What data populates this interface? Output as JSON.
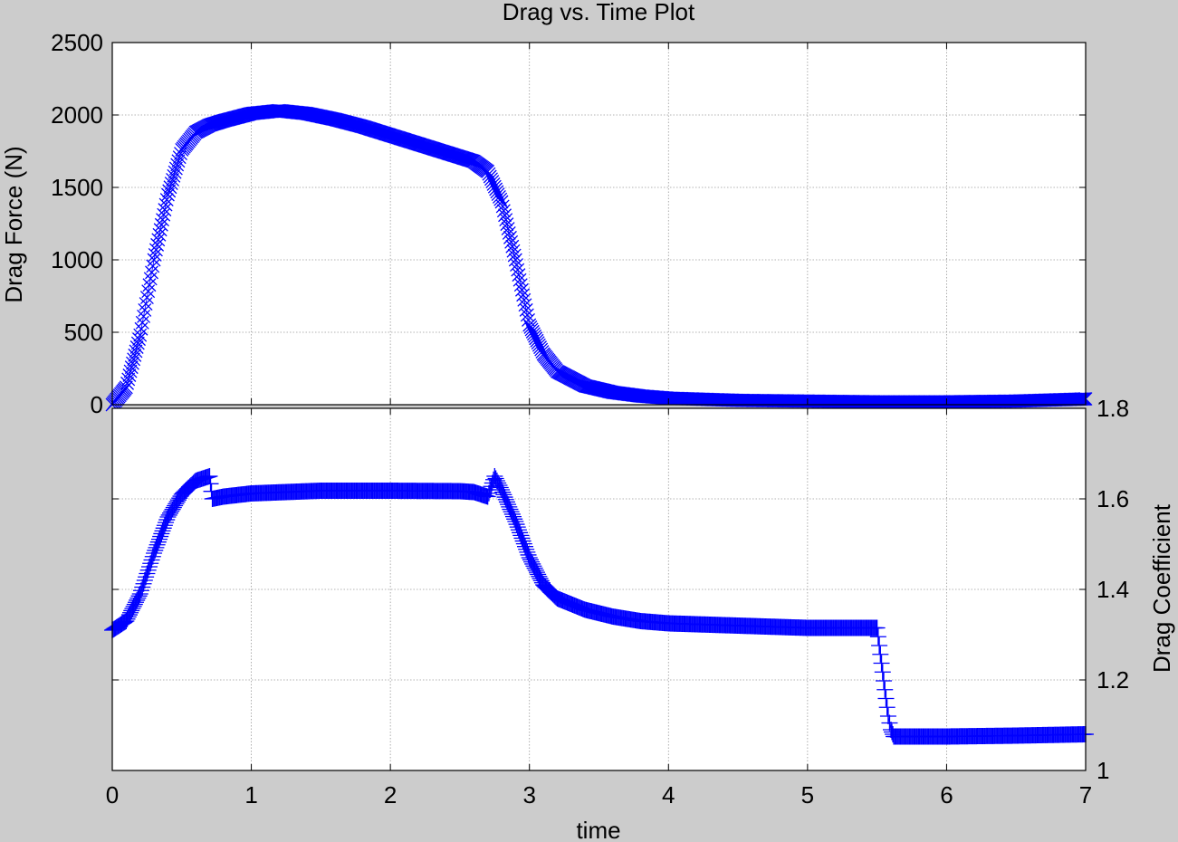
{
  "figure": {
    "background": "#cccccc",
    "plot_background": "#ffffff",
    "series_color": "#0000ff"
  },
  "chart_data": [
    {
      "type": "scatter",
      "title": "Drag vs. Time Plot",
      "xlabel": "time",
      "ylabel": "Drag Force (N)",
      "xlim": [
        0,
        7
      ],
      "ylim": [
        0,
        2500
      ],
      "xticks": [
        "0",
        "1",
        "2",
        "3",
        "4",
        "5",
        "6",
        "7"
      ],
      "yticks": [
        "0",
        "500",
        "1000",
        "1500",
        "2000",
        "2500"
      ],
      "grid": true,
      "marker": "x",
      "series": [
        {
          "x": [
            0,
            0.1,
            0.2,
            0.3,
            0.4,
            0.5,
            0.6,
            0.7,
            0.8,
            1.0,
            1.2,
            1.4,
            1.6,
            1.8,
            2.0,
            2.2,
            2.4,
            2.6,
            2.7,
            2.8,
            2.9,
            3.0,
            3.1,
            3.2,
            3.4,
            3.6,
            3.8,
            4.0,
            4.5,
            5.0,
            5.5,
            6.0,
            6.5,
            7.0
          ],
          "y": [
            0,
            120,
            480,
            1000,
            1450,
            1760,
            1880,
            1930,
            1960,
            2010,
            2030,
            2010,
            1970,
            1920,
            1860,
            1800,
            1740,
            1680,
            1610,
            1400,
            1000,
            550,
            350,
            230,
            130,
            85,
            60,
            45,
            30,
            25,
            20,
            20,
            25,
            40
          ]
        }
      ]
    },
    {
      "type": "scatter",
      "xlabel": "time",
      "ylabel": "Drag Coefficient",
      "xlim": [
        0,
        7
      ],
      "ylim": [
        1,
        1.8
      ],
      "xticks": [
        "0",
        "1",
        "2",
        "3",
        "4",
        "5",
        "6",
        "7"
      ],
      "yticks": [
        "1",
        "1.2",
        "1.4",
        "1.6",
        "1.8"
      ],
      "yaxis_side": "right",
      "grid": true,
      "marker": "+",
      "series": [
        {
          "x": [
            0,
            0.1,
            0.2,
            0.3,
            0.4,
            0.5,
            0.6,
            0.7,
            0.72,
            0.8,
            1.0,
            1.5,
            2.0,
            2.5,
            2.6,
            2.7,
            2.75,
            2.8,
            2.9,
            3.0,
            3.1,
            3.2,
            3.4,
            3.6,
            3.8,
            4.0,
            4.5,
            5.0,
            5.5,
            5.58,
            5.6,
            5.62,
            6.0,
            6.5,
            7.0
          ],
          "y": [
            1.31,
            1.33,
            1.39,
            1.48,
            1.56,
            1.61,
            1.64,
            1.65,
            1.6,
            1.605,
            1.612,
            1.618,
            1.618,
            1.617,
            1.615,
            1.605,
            1.65,
            1.62,
            1.55,
            1.47,
            1.41,
            1.38,
            1.355,
            1.34,
            1.33,
            1.325,
            1.32,
            1.315,
            1.315,
            1.12,
            1.09,
            1.075,
            1.075,
            1.077,
            1.08
          ]
        }
      ]
    }
  ]
}
